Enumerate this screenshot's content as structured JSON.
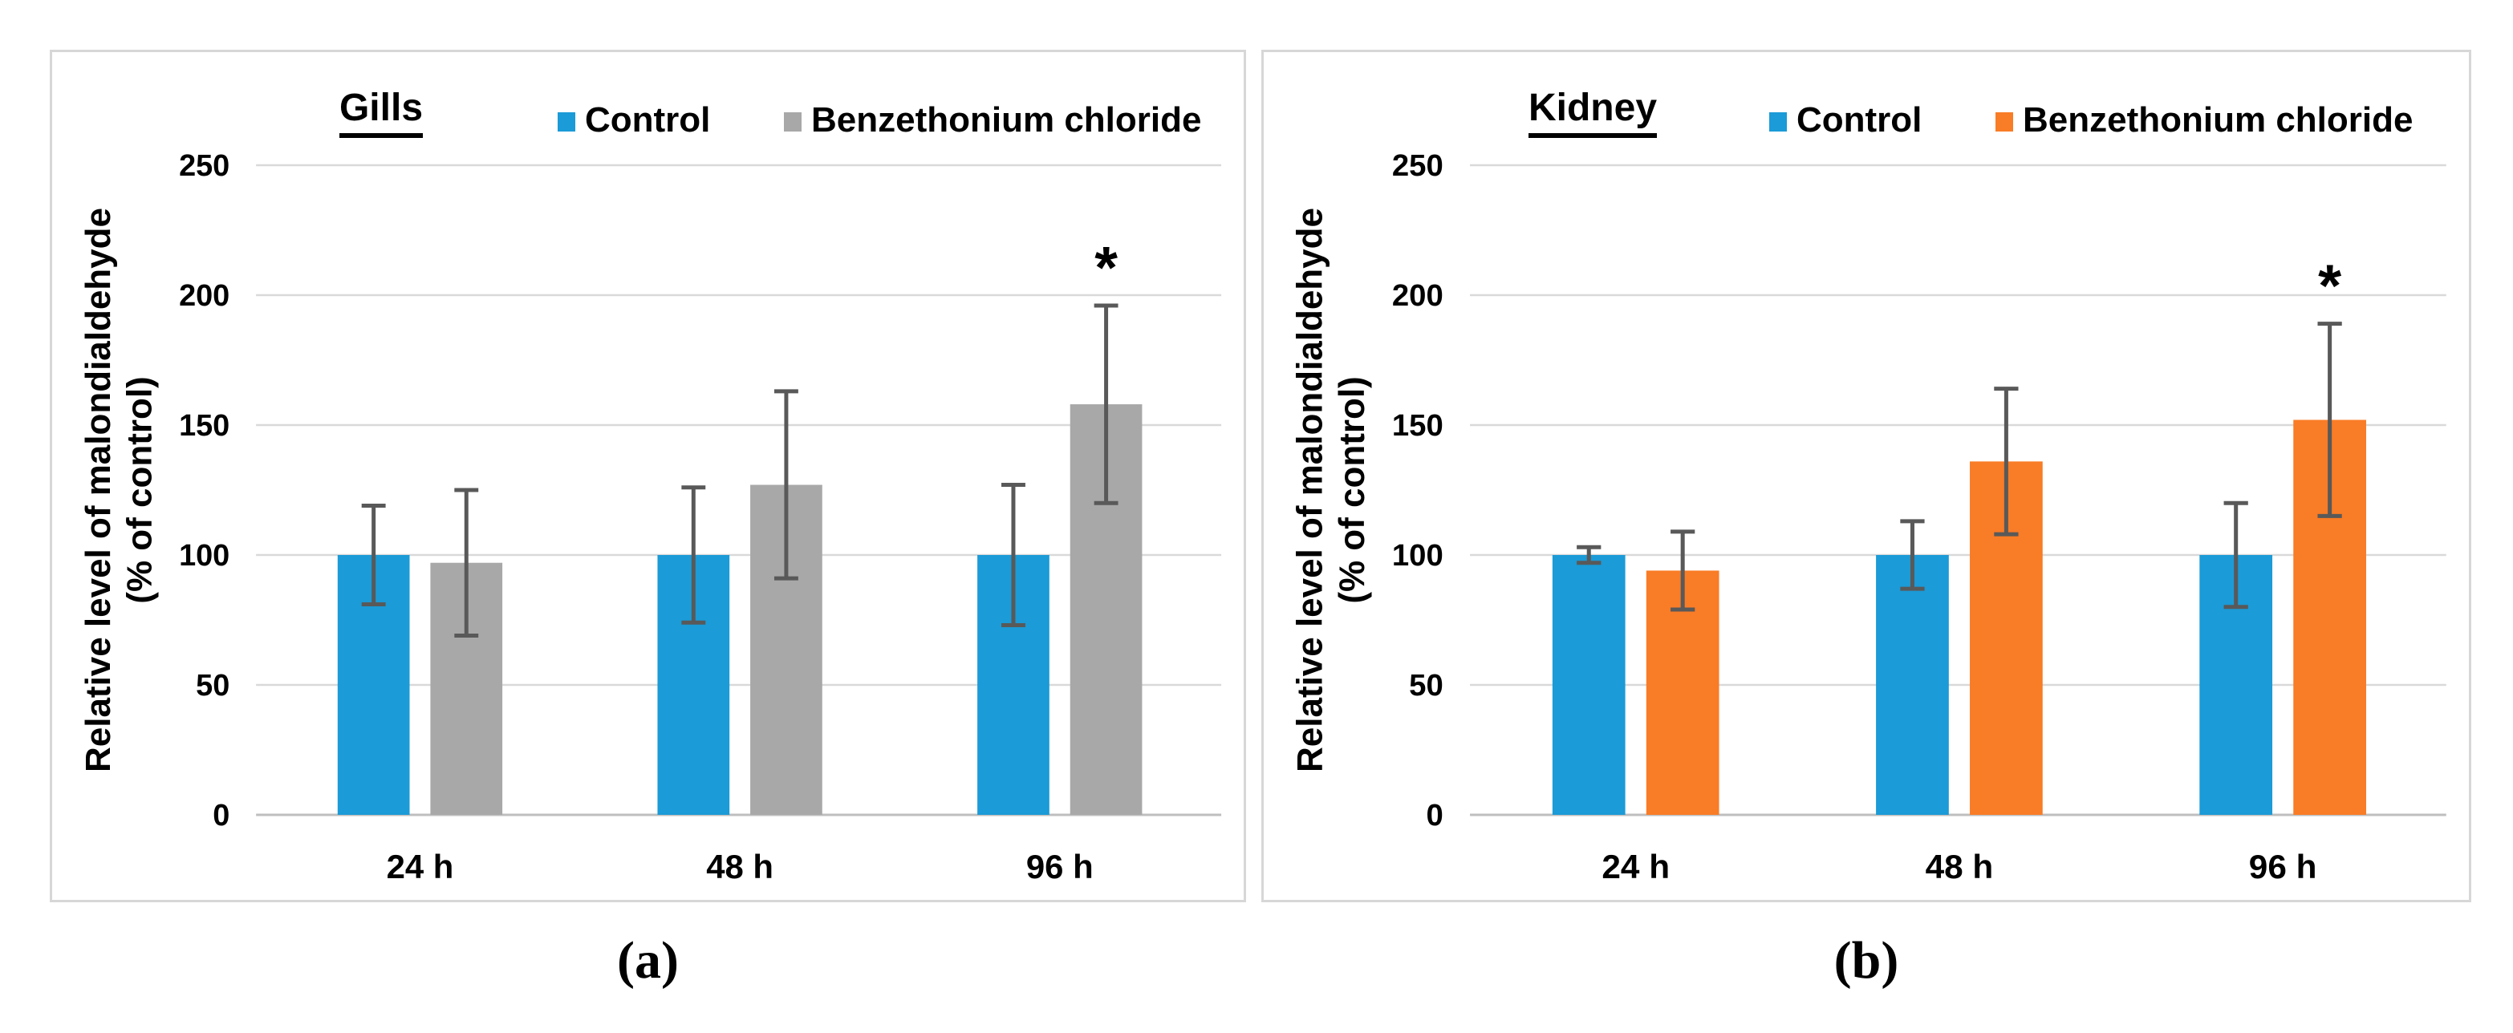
{
  "colors": {
    "control_blue": "#1b9bd7",
    "treatment_gray": "#a8a8a8",
    "treatment_orange": "#f97c26",
    "grid": "#d9d9d9",
    "axis_line": "#bfbfbf",
    "error_bar": "#595959",
    "panel_border": "#d7d7d7",
    "text": "#000000"
  },
  "chart_data": [
    {
      "type": "bar",
      "id": "gills",
      "panel_label": "(a)",
      "title": "Gills",
      "ylabel_lines": [
        "Relative level of malondialdehyde",
        "(% of control)"
      ],
      "categories": [
        "24 h",
        "48 h",
        "96 h"
      ],
      "yticks": [
        0,
        50,
        100,
        150,
        200,
        250
      ],
      "ylim": [
        0,
        250
      ],
      "grid": true,
      "legend_position": "top",
      "sig_symbol": "*",
      "series": [
        {
          "name": "Control",
          "color": "#1b9bd7",
          "values": [
            100,
            100,
            100
          ],
          "errors": [
            19,
            26,
            27
          ],
          "significant": [
            false,
            false,
            false
          ]
        },
        {
          "name": "Benzethonium chloride",
          "color": "#a8a8a8",
          "values": [
            97,
            127,
            158
          ],
          "errors": [
            28,
            36,
            38
          ],
          "significant": [
            false,
            false,
            true
          ]
        }
      ]
    },
    {
      "type": "bar",
      "id": "kidney",
      "panel_label": "(b)",
      "title": "Kidney",
      "ylabel_lines": [
        "Relative level of malondialdehyde",
        "(% of control)"
      ],
      "categories": [
        "24 h",
        "48 h",
        "96 h"
      ],
      "yticks": [
        0,
        50,
        100,
        150,
        200,
        250
      ],
      "ylim": [
        0,
        250
      ],
      "grid": true,
      "legend_position": "top",
      "sig_symbol": "*",
      "series": [
        {
          "name": "Control",
          "color": "#1b9bd7",
          "values": [
            100,
            100,
            100
          ],
          "errors": [
            3,
            13,
            20
          ],
          "significant": [
            false,
            false,
            false
          ]
        },
        {
          "name": "Benzethonium chloride",
          "color": "#f97c26",
          "values": [
            94,
            136,
            152
          ],
          "errors": [
            15,
            28,
            37
          ],
          "significant": [
            false,
            false,
            true
          ]
        }
      ]
    }
  ]
}
